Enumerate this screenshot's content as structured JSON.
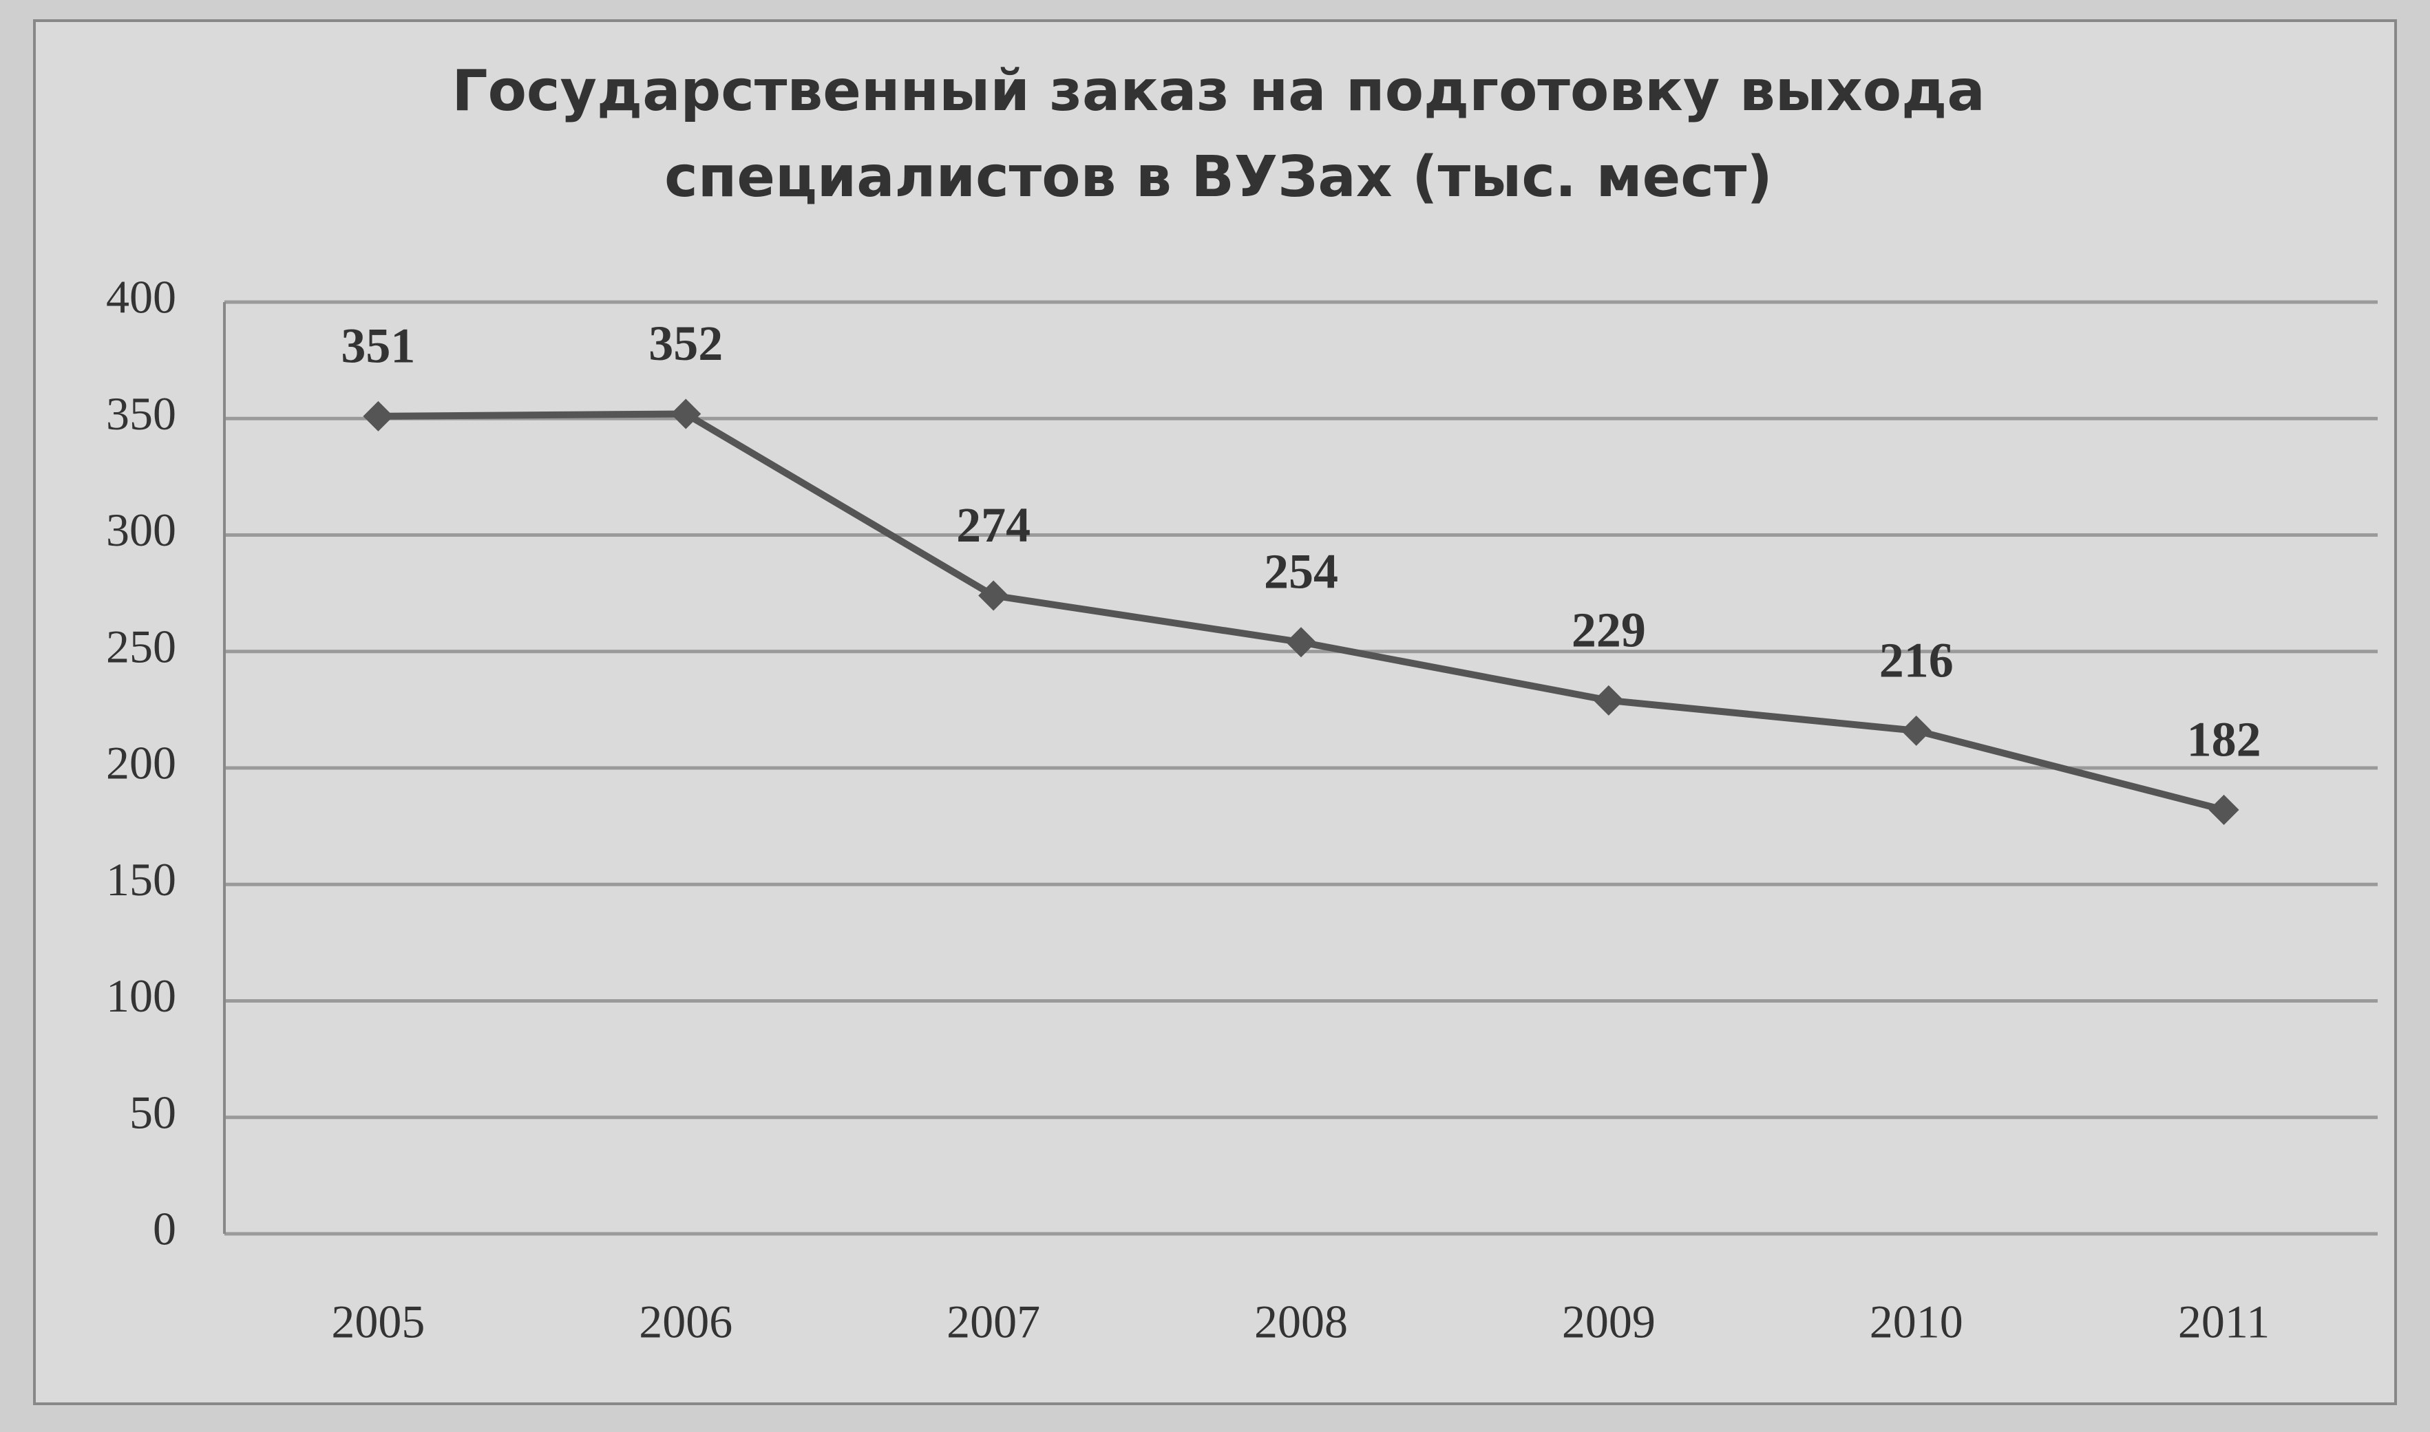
{
  "chart_data": {
    "type": "line",
    "title": "Государственный заказ на подготовку выхода специалистов в ВУЗах (тыс. мест)",
    "categories": [
      "2005",
      "2006",
      "2007",
      "2008",
      "2009",
      "2010",
      "2011"
    ],
    "values": [
      351,
      352,
      274,
      254,
      229,
      216,
      182
    ],
    "color": "#555555",
    "ylim": [
      0,
      400
    ],
    "yticks": [
      0,
      50,
      100,
      150,
      200,
      250,
      300,
      350,
      400
    ],
    "grid": true
  }
}
